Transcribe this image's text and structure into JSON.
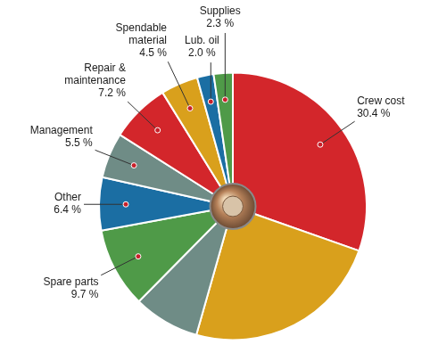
{
  "chart_data": {
    "type": "pie",
    "categories": [
      "Crew cost",
      null,
      null,
      "Spare parts",
      "Other",
      "Management",
      "Repair & maintenance",
      "Spendable material",
      "Lub. oil",
      "Supplies"
    ],
    "values": [
      30.4,
      24.0,
      8.0,
      9.7,
      6.4,
      5.5,
      7.2,
      4.5,
      2.0,
      2.3
    ],
    "value_labels": [
      "30.4 %",
      null,
      null,
      "9.7 %",
      "6.4 %",
      "5.5 %",
      "7.2 %",
      "4.5 %",
      "2.0 %",
      "2.3 %"
    ],
    "colors": [
      "#d3262b",
      "#d9a01c",
      "#6f8c86",
      "#4f9a48",
      "#1b6ea3",
      "#6f8c86",
      "#d3262b",
      "#d9a01c",
      "#1b6ea3",
      "#4f9a48"
    ],
    "data_labels": true
  }
}
